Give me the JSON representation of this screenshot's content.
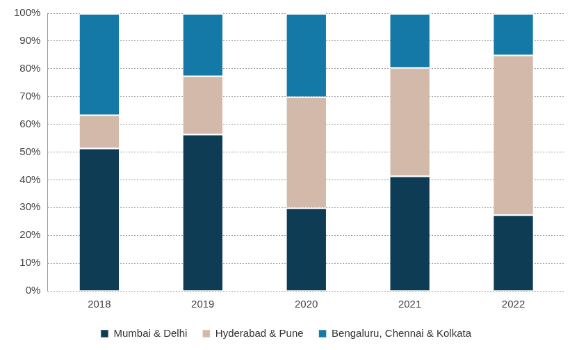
{
  "chart_data": {
    "type": "bar",
    "stacked": true,
    "grid": true,
    "legend": "bottom",
    "categories": [
      "2018",
      "2019",
      "2020",
      "2021",
      "2022"
    ],
    "series": [
      {
        "name": "Mumbai & Delhi",
        "color": "#0e3c55",
        "values": [
          51.5,
          56.5,
          30,
          41.5,
          27.5
        ]
      },
      {
        "name": "Hyderabad & Pune",
        "color": "#d3b9a9",
        "values": [
          12,
          21,
          40,
          39,
          57.5
        ]
      },
      {
        "name": "Bengaluru, Chennai & Kolkata",
        "color": "#1479a6",
        "values": [
          36.5,
          22.5,
          30,
          19.5,
          15
        ]
      }
    ],
    "ylim": [
      0,
      100
    ],
    "yticks": [
      {
        "value": 0,
        "label": "0%"
      },
      {
        "value": 10,
        "label": "10%"
      },
      {
        "value": 20,
        "label": "20%"
      },
      {
        "value": 30,
        "label": "30%"
      },
      {
        "value": 40,
        "label": "40%"
      },
      {
        "value": 50,
        "label": "50%"
      },
      {
        "value": 60,
        "label": "60%"
      },
      {
        "value": 70,
        "label": "70%"
      },
      {
        "value": 80,
        "label": "80%"
      },
      {
        "value": 90,
        "label": "90%"
      },
      {
        "value": 100,
        "label": "100%"
      }
    ]
  }
}
